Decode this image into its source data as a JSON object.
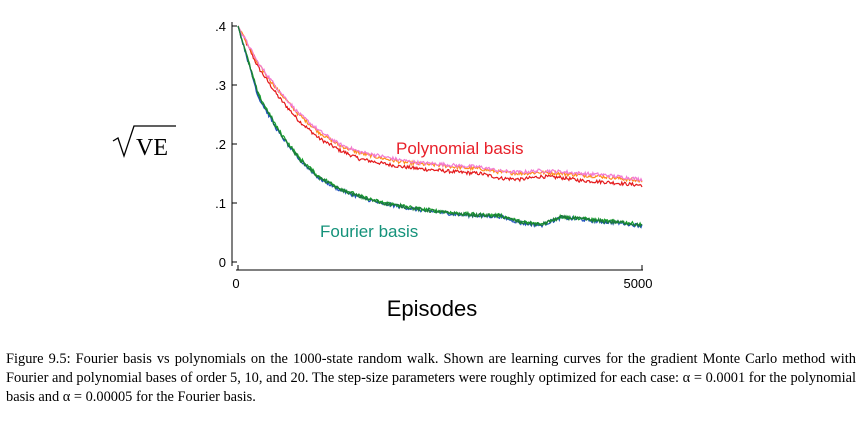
{
  "chart_data": {
    "type": "line",
    "xlabel": "Episodes",
    "ylabel": "VE",
    "xlim": [
      0,
      5000
    ],
    "ylim": [
      0,
      0.4
    ],
    "x_ticks": [
      "0",
      "5000"
    ],
    "y_ticks": [
      "0",
      ".1",
      ".2",
      ".3",
      ".4"
    ],
    "annotations": [
      {
        "text": "Polynomial basis",
        "color": "#e8202a"
      },
      {
        "text": "Fourier basis",
        "color": "#14927a"
      }
    ],
    "series": [
      {
        "group": "Polynomial basis",
        "color": "#e41a1c",
        "x": [
          0,
          250,
          500,
          750,
          1000,
          1250,
          1500,
          1750,
          2000,
          2250,
          2500,
          2750,
          3000,
          3250,
          3500,
          3750,
          4000,
          4250,
          4500,
          4750,
          5000
        ],
        "y": [
          0.4,
          0.33,
          0.28,
          0.24,
          0.21,
          0.19,
          0.175,
          0.168,
          0.162,
          0.158,
          0.155,
          0.152,
          0.15,
          0.142,
          0.14,
          0.145,
          0.143,
          0.138,
          0.136,
          0.133,
          0.13
        ]
      },
      {
        "group": "Polynomial basis",
        "color": "#ff8c1a",
        "x": [
          0,
          250,
          500,
          750,
          1000,
          1250,
          1500,
          1750,
          2000,
          2250,
          2500,
          2750,
          3000,
          3250,
          3500,
          3750,
          4000,
          4250,
          4500,
          4750,
          5000
        ],
        "y": [
          0.4,
          0.335,
          0.29,
          0.25,
          0.22,
          0.198,
          0.185,
          0.177,
          0.17,
          0.166,
          0.164,
          0.16,
          0.158,
          0.152,
          0.15,
          0.152,
          0.15,
          0.147,
          0.145,
          0.141,
          0.137
        ]
      },
      {
        "group": "Polynomial basis",
        "color": "#f27ad2",
        "x": [
          0,
          250,
          500,
          750,
          1000,
          1250,
          1500,
          1750,
          2000,
          2250,
          2500,
          2750,
          3000,
          3250,
          3500,
          3750,
          4000,
          4250,
          4500,
          4750,
          5000
        ],
        "y": [
          0.4,
          0.337,
          0.292,
          0.252,
          0.223,
          0.2,
          0.187,
          0.18,
          0.173,
          0.168,
          0.166,
          0.163,
          0.161,
          0.154,
          0.152,
          0.155,
          0.153,
          0.15,
          0.148,
          0.144,
          0.14
        ]
      },
      {
        "group": "Fourier basis",
        "color": "#1f4fbf",
        "x": [
          0,
          250,
          500,
          750,
          1000,
          1250,
          1500,
          1750,
          2000,
          2250,
          2500,
          2750,
          3000,
          3250,
          3500,
          3750,
          4000,
          4250,
          4500,
          4750,
          5000
        ],
        "y": [
          0.4,
          0.28,
          0.22,
          0.175,
          0.142,
          0.123,
          0.11,
          0.1,
          0.094,
          0.088,
          0.084,
          0.08,
          0.078,
          0.077,
          0.066,
          0.062,
          0.075,
          0.072,
          0.068,
          0.066,
          0.061
        ]
      },
      {
        "group": "Fourier basis",
        "color": "#17a02c",
        "x": [
          0,
          250,
          500,
          750,
          1000,
          1250,
          1500,
          1750,
          2000,
          2250,
          2500,
          2750,
          3000,
          3250,
          3500,
          3750,
          4000,
          4250,
          4500,
          4750,
          5000
        ],
        "y": [
          0.4,
          0.285,
          0.224,
          0.178,
          0.145,
          0.126,
          0.112,
          0.102,
          0.096,
          0.09,
          0.086,
          0.082,
          0.08,
          0.079,
          0.068,
          0.064,
          0.077,
          0.074,
          0.07,
          0.068,
          0.063
        ]
      },
      {
        "group": "Fourier basis",
        "color": "#1b7a3a",
        "x": [
          0,
          250,
          500,
          750,
          1000,
          1250,
          1500,
          1750,
          2000,
          2250,
          2500,
          2750,
          3000,
          3250,
          3500,
          3750,
          4000,
          4250,
          4500,
          4750,
          5000
        ],
        "y": [
          0.4,
          0.282,
          0.222,
          0.176,
          0.143,
          0.124,
          0.111,
          0.101,
          0.095,
          0.089,
          0.085,
          0.081,
          0.079,
          0.078,
          0.067,
          0.063,
          0.076,
          0.073,
          0.069,
          0.067,
          0.062
        ]
      }
    ]
  },
  "caption": "Figure 9.5: Fourier basis vs polynomials on the 1000-state random walk. Shown are learning curves for the gradient Monte Carlo method with Fourier and polynomial bases of order 5, 10, and 20. The step-size parameters were roughly optimized for each case: α = 0.0001 for the polynomial basis and α = 0.00005 for the Fourier basis."
}
